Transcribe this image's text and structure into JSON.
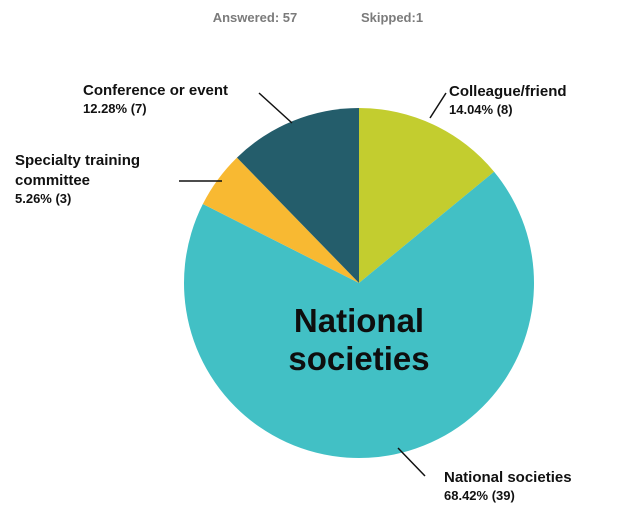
{
  "header": {
    "answered": "Answered: 57",
    "skipped": "Skipped:1"
  },
  "center_label": {
    "line1": "National",
    "line2": "societies"
  },
  "chart_data": {
    "type": "pie",
    "title": "",
    "slices": [
      {
        "name": "Colleague/friend",
        "value": 8,
        "percent": 14.04,
        "label_lines": [
          "Colleague/friend"
        ],
        "value_text": "14.04% (8)",
        "color": "#c3cd2f"
      },
      {
        "name": "National societies",
        "value": 39,
        "percent": 68.42,
        "label_lines": [
          "National societies"
        ],
        "value_text": "68.42% (39)",
        "color": "#42c0c5"
      },
      {
        "name": "Specialty training committee",
        "value": 3,
        "percent": 5.26,
        "label_lines": [
          "Specialty training",
          "committee"
        ],
        "value_text": "5.26% (3)",
        "color": "#f8b932"
      },
      {
        "name": "Conference or event",
        "value": 7,
        "percent": 12.28,
        "label_lines": [
          "Conference or event"
        ],
        "value_text": "12.28% (7)",
        "color": "#245d6b"
      }
    ],
    "start_angle_deg": 0,
    "direction": "clockwise",
    "legend": "none"
  }
}
